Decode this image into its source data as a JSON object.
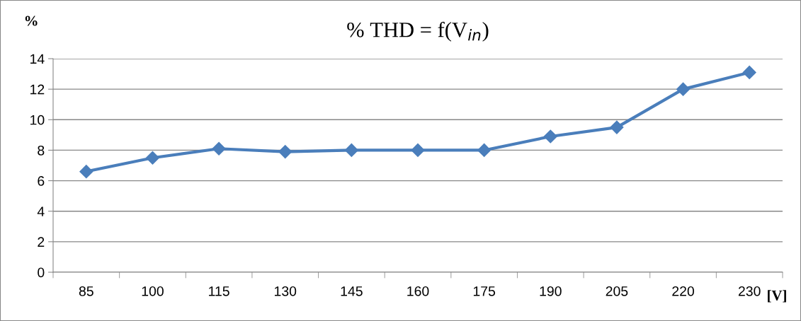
{
  "chart_data": {
    "type": "line",
    "title": "% THD = f(V$_{in}$)",
    "xlabel": "[V]",
    "ylabel": "%",
    "categories": [
      "85",
      "100",
      "115",
      "130",
      "145",
      "160",
      "175",
      "190",
      "205",
      "220",
      "230"
    ],
    "series": [
      {
        "color": "#4a7ebb",
        "values": [
          6.6,
          7.5,
          8.1,
          7.9,
          8.0,
          8.0,
          8.0,
          8.9,
          9.5,
          12.0,
          13.1
        ]
      }
    ],
    "ylim": [
      0,
      14
    ],
    "yticks": [
      0,
      2,
      4,
      6,
      8,
      10,
      12,
      14
    ],
    "grid": "y",
    "marker": "diamond",
    "line_style": "solid"
  }
}
